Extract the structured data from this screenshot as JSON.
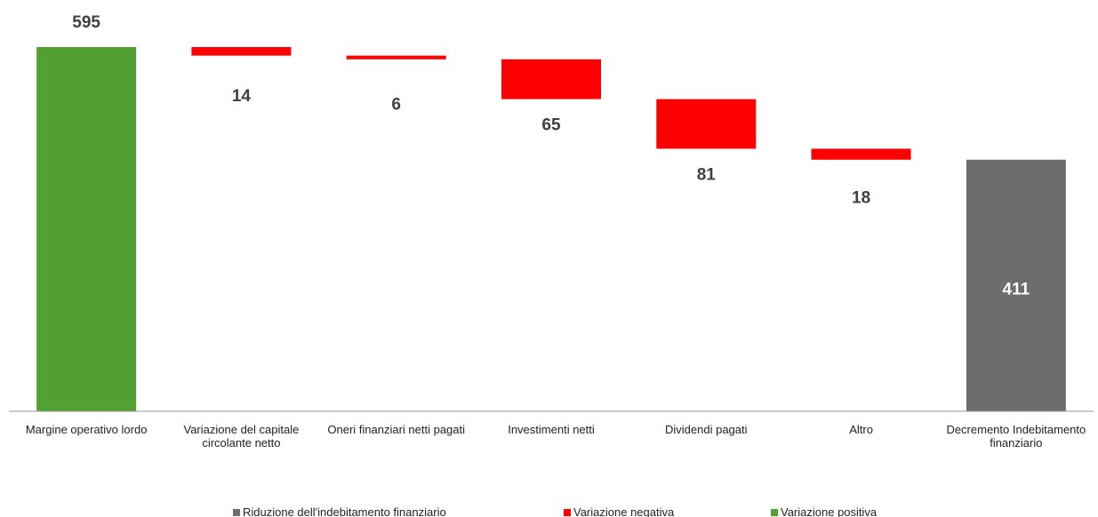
{
  "chart_data": {
    "type": "waterfall",
    "categories": [
      "Margine operativo lordo",
      "Variazione del capitale circolante netto",
      "Oneri finanziari netti pagati",
      "Investimenti netti",
      "Dividendi pagati",
      "Altro",
      "Decremento Indebitamento finanziario"
    ],
    "series": [
      {
        "name": "Riduzione dell'indebitamento finanziario",
        "color": "#6d6d6d",
        "kind": "total",
        "values": [
          null,
          null,
          null,
          null,
          null,
          null,
          411
        ]
      },
      {
        "name": "Variazione negativa",
        "color": "#ff0000",
        "kind": "decrease",
        "values": [
          null,
          14,
          6,
          65,
          81,
          18,
          null
        ]
      },
      {
        "name": "Variazione positiva",
        "color": "#52a032",
        "kind": "increase",
        "values": [
          595,
          null,
          null,
          null,
          null,
          null,
          null
        ]
      }
    ]
  }
}
